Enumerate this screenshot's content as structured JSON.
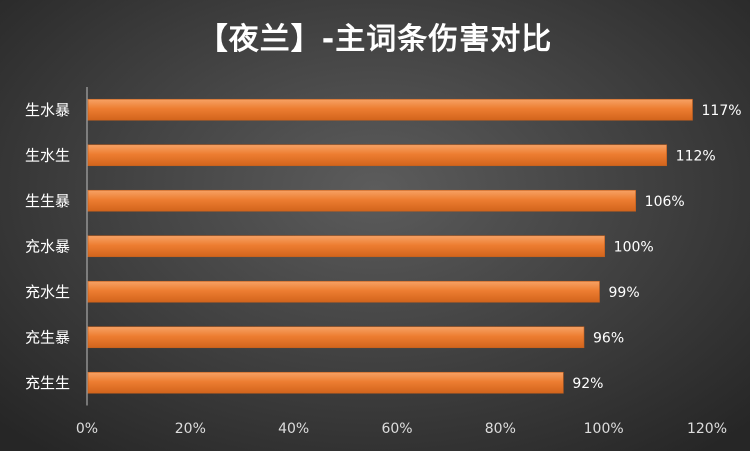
{
  "chart_data": {
    "type": "bar",
    "orientation": "horizontal",
    "title": "【夜兰】-主词条伤害对比",
    "categories": [
      "生水暴",
      "生水生",
      "生生暴",
      "充水暴",
      "充水生",
      "充生暴",
      "充生生"
    ],
    "values": [
      117,
      112,
      106,
      100,
      99,
      96,
      92
    ],
    "value_labels": [
      "117%",
      "112%",
      "106%",
      "100%",
      "99%",
      "96%",
      "92%"
    ],
    "x_ticks": [
      "0%",
      "20%",
      "40%",
      "60%",
      "80%",
      "100%",
      "120%"
    ],
    "xlim": [
      0,
      120
    ],
    "grid": false,
    "legend": "none",
    "bar_color": "#ED7D31"
  }
}
